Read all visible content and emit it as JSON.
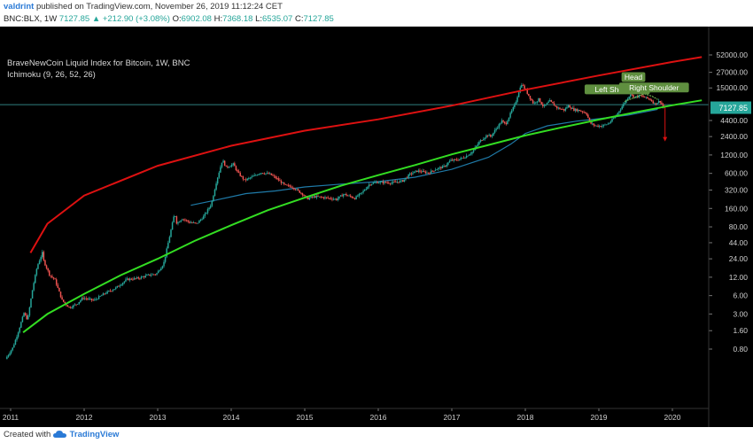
{
  "header": {
    "author": "valdrint",
    "published_text": "published on TradingView.com, November 26, 2019 11:12:24 CET",
    "symbol": "BNC:BLX, 1W",
    "last_price": "7127.85",
    "change": "▲ +212.90 (+3.08%)",
    "o_label": "O:",
    "o_value": "6902.08",
    "h_label": "H:",
    "h_value": "7368.18",
    "l_label": "L:",
    "l_value": "6535.07",
    "c_label": "C:",
    "c_value": "7127.85"
  },
  "legend": {
    "title": "BraveNewCoin Liquid Index for Bitcoin, 1W, BNC",
    "indicator": "Ichimoku (9, 26, 52, 26)"
  },
  "footer": {
    "created_with": "Created with",
    "brand": "TradingView"
  },
  "colors": {
    "background": "#000000",
    "up_candle": "#26a69a",
    "down_candle": "#ef5350",
    "support_curve": "#33dd22",
    "resistance_curve": "#dd1111",
    "ichimoku_line": "#1f7aa8",
    "price_label_bg": "#26a69a",
    "pattern_label_bg": "#5f8f3f",
    "horizontal_line": "#2f7f7f"
  },
  "chart_data": {
    "type": "candlestick",
    "scale": "log",
    "title": "BraveNewCoin Liquid Index for Bitcoin, 1W, BNC",
    "x_ticks": [
      "2011",
      "2012",
      "2013",
      "2014",
      "2015",
      "2016",
      "2017",
      "2018",
      "2019",
      "2020"
    ],
    "y_ticks": [
      "52000.00",
      "27000.00",
      "15000.00",
      "7127.85",
      "4400.00",
      "2400.00",
      "1200.00",
      "600.00",
      "320.00",
      "160.00",
      "80.00",
      "44.00",
      "24.00",
      "12.00",
      "6.00",
      "3.00",
      "1.60",
      "0.80"
    ],
    "last_price_label": "7127.85",
    "price_path": [
      [
        2010.95,
        0.55
      ],
      [
        2011.05,
        0.85
      ],
      [
        2011.12,
        1.5
      ],
      [
        2011.2,
        3.1
      ],
      [
        2011.25,
        2.4
      ],
      [
        2011.32,
        8
      ],
      [
        2011.38,
        18
      ],
      [
        2011.45,
        30
      ],
      [
        2011.47,
        22
      ],
      [
        2011.55,
        13
      ],
      [
        2011.62,
        11
      ],
      [
        2011.72,
        5
      ],
      [
        2011.82,
        3.8
      ],
      [
        2011.92,
        4.4
      ],
      [
        2012.0,
        5.5
      ],
      [
        2012.15,
        5
      ],
      [
        2012.3,
        6.5
      ],
      [
        2012.45,
        8
      ],
      [
        2012.6,
        11
      ],
      [
        2012.75,
        11.5
      ],
      [
        2012.9,
        13
      ],
      [
        2013.0,
        13.5
      ],
      [
        2013.1,
        20
      ],
      [
        2013.18,
        55
      ],
      [
        2013.25,
        135
      ],
      [
        2013.28,
        90
      ],
      [
        2013.35,
        110
      ],
      [
        2013.45,
        95
      ],
      [
        2013.55,
        90
      ],
      [
        2013.65,
        120
      ],
      [
        2013.75,
        190
      ],
      [
        2013.82,
        450
      ],
      [
        2013.9,
        1000
      ],
      [
        2013.95,
        750
      ],
      [
        2014.05,
        850
      ],
      [
        2014.1,
        640
      ],
      [
        2014.2,
        460
      ],
      [
        2014.3,
        520
      ],
      [
        2014.42,
        620
      ],
      [
        2014.55,
        580
      ],
      [
        2014.65,
        480
      ],
      [
        2014.75,
        380
      ],
      [
        2014.85,
        360
      ],
      [
        2015.0,
        270
      ],
      [
        2015.05,
        230
      ],
      [
        2015.15,
        250
      ],
      [
        2015.3,
        240
      ],
      [
        2015.45,
        225
      ],
      [
        2015.55,
        275
      ],
      [
        2015.7,
        235
      ],
      [
        2015.8,
        290
      ],
      [
        2015.9,
        400
      ],
      [
        2016.0,
        430
      ],
      [
        2016.2,
        420
      ],
      [
        2016.35,
        450
      ],
      [
        2016.45,
        580
      ],
      [
        2016.55,
        660
      ],
      [
        2016.7,
        610
      ],
      [
        2016.8,
        700
      ],
      [
        2016.92,
        780
      ],
      [
        2017.0,
        970
      ],
      [
        2017.1,
        1000
      ],
      [
        2017.2,
        1120
      ],
      [
        2017.3,
        1350
      ],
      [
        2017.4,
        2000
      ],
      [
        2017.5,
        2550
      ],
      [
        2017.55,
        2400
      ],
      [
        2017.62,
        3200
      ],
      [
        2017.7,
        4300
      ],
      [
        2017.75,
        3800
      ],
      [
        2017.82,
        5800
      ],
      [
        2017.88,
        8100
      ],
      [
        2017.93,
        13000
      ],
      [
        2017.97,
        17500
      ],
      [
        2018.02,
        14000
      ],
      [
        2018.08,
        10500
      ],
      [
        2018.13,
        8300
      ],
      [
        2018.2,
        9800
      ],
      [
        2018.27,
        7300
      ],
      [
        2018.35,
        9200
      ],
      [
        2018.45,
        7100
      ],
      [
        2018.55,
        6500
      ],
      [
        2018.6,
        7700
      ],
      [
        2018.68,
        6600
      ],
      [
        2018.75,
        6450
      ],
      [
        2018.85,
        5800
      ],
      [
        2018.9,
        4000
      ],
      [
        2018.97,
        3600
      ],
      [
        2019.05,
        3550
      ],
      [
        2019.15,
        3900
      ],
      [
        2019.25,
        5200
      ],
      [
        2019.35,
        8000
      ],
      [
        2019.45,
        12000
      ],
      [
        2019.5,
        10500
      ],
      [
        2019.58,
        11200
      ],
      [
        2019.65,
        10400
      ],
      [
        2019.72,
        9700
      ],
      [
        2019.78,
        8200
      ],
      [
        2019.85,
        9200
      ],
      [
        2019.9,
        7128
      ]
    ],
    "resistance_curve": [
      [
        2011.27,
        30
      ],
      [
        2011.5,
        90
      ],
      [
        2012.0,
        260
      ],
      [
        2013.0,
        800
      ],
      [
        2014.0,
        1700
      ],
      [
        2015.0,
        3000
      ],
      [
        2016.0,
        4600
      ],
      [
        2017.0,
        7700
      ],
      [
        2018.0,
        14000
      ],
      [
        2019.0,
        24000
      ],
      [
        2020.0,
        40000
      ],
      [
        2020.4,
        48000
      ]
    ],
    "support_curve": [
      [
        2011.17,
        1.5
      ],
      [
        2011.5,
        3
      ],
      [
        2012.0,
        6.4
      ],
      [
        2012.5,
        13
      ],
      [
        2013.0,
        24
      ],
      [
        2013.5,
        47
      ],
      [
        2014.0,
        85
      ],
      [
        2014.5,
        150
      ],
      [
        2015.0,
        240
      ],
      [
        2015.5,
        380
      ],
      [
        2016.0,
        560
      ],
      [
        2016.5,
        820
      ],
      [
        2017.0,
        1230
      ],
      [
        2017.5,
        1750
      ],
      [
        2018.0,
        2500
      ],
      [
        2018.5,
        3400
      ],
      [
        2019.0,
        4550
      ],
      [
        2019.5,
        6000
      ],
      [
        2020.0,
        7800
      ],
      [
        2020.4,
        9400
      ]
    ],
    "ichimoku_curve": [
      [
        2013.45,
        180
      ],
      [
        2013.8,
        220
      ],
      [
        2014.2,
        280
      ],
      [
        2014.6,
        310
      ],
      [
        2015.0,
        360
      ],
      [
        2015.5,
        400
      ],
      [
        2016.0,
        440
      ],
      [
        2016.5,
        520
      ],
      [
        2017.0,
        700
      ],
      [
        2017.5,
        1100
      ],
      [
        2017.8,
        1800
      ],
      [
        2018.0,
        2700
      ],
      [
        2018.3,
        3600
      ],
      [
        2018.7,
        4300
      ],
      [
        2019.0,
        4700
      ],
      [
        2019.4,
        5400
      ],
      [
        2019.8,
        6700
      ]
    ],
    "horizontal_line": 8000,
    "projection": {
      "x": 2019.9,
      "from": 7127.85,
      "to": 2000
    },
    "pattern": {
      "type": "head-and-shoulders",
      "labels": [
        {
          "text": "Head",
          "x": 2019.47,
          "y": 21500
        },
        {
          "text": "Left Shoulder",
          "x": 2019.25,
          "y": 13500
        },
        {
          "text": "Right Shoulder",
          "x": 2019.75,
          "y": 14500
        }
      ],
      "outline": [
        [
          2019.35,
          9000
        ],
        [
          2019.52,
          10800
        ],
        [
          2019.62,
          12000
        ],
        [
          2019.72,
          11000
        ],
        [
          2019.8,
          9700
        ]
      ]
    }
  }
}
